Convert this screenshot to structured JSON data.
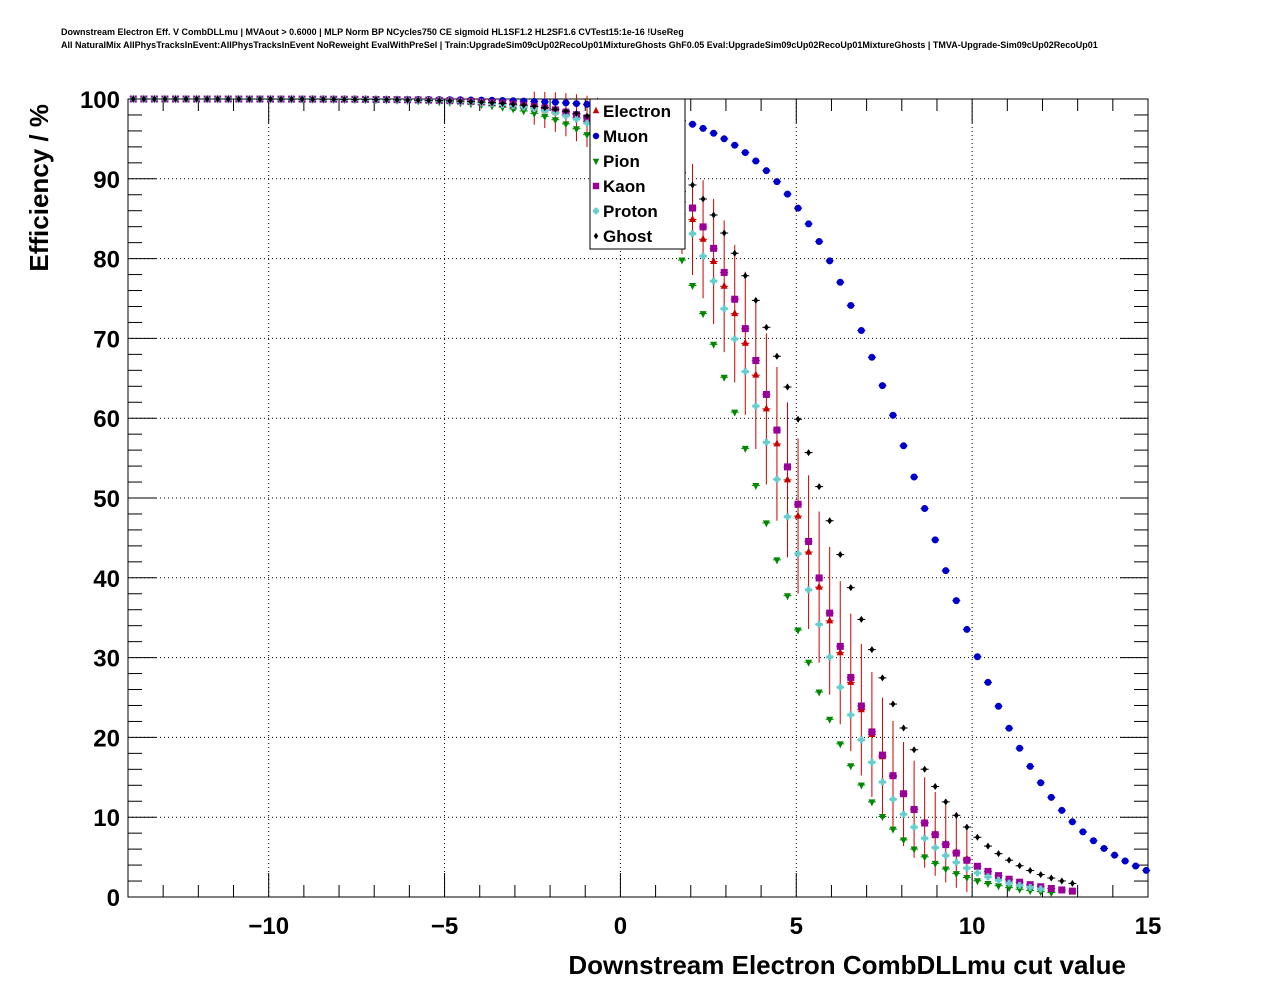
{
  "chart_data": {
    "type": "scatter",
    "title": "Downstream Electron Eff. V CombDLLmu | MVAout > 0.6000 | MLP Norm BP NCycles750 CE sigmoid HL1SF1.2 HL2SF1.6 CVTest15:1e-16 !UseReg",
    "subtitle": "All NaturalMix AllPhysTracksInEvent:AllPhysTracksInEvent NoReweight EvalWithPreSel | Train:UpgradeSim09cUp02RecoUp01MixtureGhosts GhF0.05 Eval:UpgradeSim09cUp02RecoUp01MixtureGhosts | TMVA-Upgrade-Sim09cUp02RecoUp01",
    "xlabel": "Downstream Electron CombDLLmu cut value",
    "ylabel": "Efficiency / %",
    "xlim": [
      -14,
      15
    ],
    "ylim": [
      0,
      100
    ],
    "xticks": [
      -10,
      -5,
      0,
      5,
      10,
      15
    ],
    "xtick_labels": [
      "−10",
      "−5",
      "0",
      "5",
      "10",
      "15"
    ],
    "yticks": [
      0,
      10,
      20,
      30,
      40,
      50,
      60,
      70,
      80,
      90,
      100
    ],
    "ytick_labels": [
      "0",
      "10",
      "20",
      "30",
      "40",
      "50",
      "60",
      "70",
      "80",
      "90",
      "100"
    ],
    "grid": true,
    "legend_position": "top-center",
    "series": [
      {
        "name": "Electron",
        "color": "#cc0000",
        "marker": "triangle-up",
        "errors": true,
        "curve": {
          "mid": 4.9,
          "width": 1.65,
          "lo": -15,
          "hi": 10.0
        }
      },
      {
        "name": "Muon",
        "color": "#0000cc",
        "marker": "circle",
        "errors": false,
        "curve": {
          "mid": 8.55,
          "width": 1.9,
          "lo": -15,
          "hi": 15
        }
      },
      {
        "name": "Pion",
        "color": "#008800",
        "marker": "triangle-down",
        "errors": false,
        "curve": {
          "mid": 3.95,
          "width": 1.6,
          "lo": -15,
          "hi": 12.5
        }
      },
      {
        "name": "Kaon",
        "color": "#990099",
        "marker": "square",
        "errors": false,
        "curve": {
          "mid": 5.0,
          "width": 1.6,
          "lo": -15,
          "hi": 13.0
        }
      },
      {
        "name": "Proton",
        "color": "#66cccc",
        "marker": "cross",
        "errors": false,
        "curve": {
          "mid": 4.6,
          "width": 1.6,
          "lo": -15,
          "hi": 12.0
        }
      },
      {
        "name": "Ghost",
        "color": "#000000",
        "marker": "diamond",
        "errors": false,
        "curve": {
          "mid": 5.75,
          "width": 1.75,
          "lo": -15,
          "hi": 13.0
        }
      }
    ],
    "x_step": 0.3
  }
}
